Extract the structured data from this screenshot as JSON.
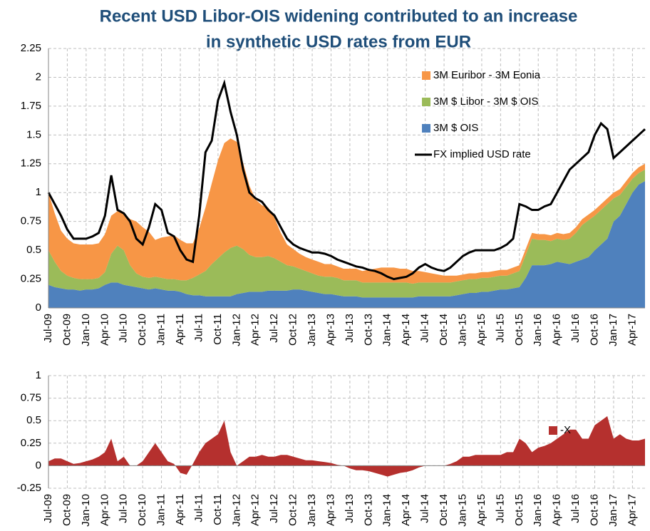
{
  "title": "Recent USD Libor-OIS widening contributed to an increase in synthetic USD rates from EUR",
  "chart_data": [
    {
      "type": "area",
      "stacked": true,
      "categories": [
        "Jul-09",
        null,
        null,
        "Oct-09",
        null,
        null,
        "Jan-10",
        null,
        null,
        "Apr-10",
        null,
        null,
        "Jul-10",
        null,
        null,
        "Oct-10",
        null,
        null,
        "Jan-11",
        null,
        null,
        "Apr-11",
        null,
        null,
        "Jul-11",
        null,
        null,
        "Oct-11",
        null,
        null,
        "Jan-12",
        null,
        null,
        "Apr-12",
        null,
        null,
        "Jul-12",
        null,
        null,
        "Oct-12",
        null,
        null,
        "Jan-13",
        null,
        null,
        "Apr-13",
        null,
        null,
        "Jul-13",
        null,
        null,
        "Oct-13",
        null,
        null,
        "Jan-14",
        null,
        null,
        "Apr-14",
        null,
        null,
        "Jul-14",
        null,
        null,
        "Oct-14",
        null,
        null,
        "Jan-15",
        null,
        null,
        "Apr-15",
        null,
        null,
        "Jul-15",
        null,
        null,
        "Oct-15",
        null,
        null,
        "Jan-16",
        null,
        null,
        "Apr-16",
        null,
        null,
        "Jul-16",
        null,
        null,
        "Oct-16",
        null,
        null,
        "Jan-17",
        null,
        null,
        "Apr-17",
        null,
        null
      ],
      "series": [
        {
          "name": "3M $ OIS",
          "color": "#4f81bd",
          "values": [
            0.2,
            0.18,
            0.17,
            0.16,
            0.16,
            0.15,
            0.16,
            0.16,
            0.17,
            0.2,
            0.22,
            0.22,
            0.2,
            0.19,
            0.18,
            0.17,
            0.16,
            0.17,
            0.16,
            0.15,
            0.15,
            0.14,
            0.12,
            0.11,
            0.11,
            0.1,
            0.1,
            0.1,
            0.1,
            0.1,
            0.12,
            0.13,
            0.14,
            0.14,
            0.14,
            0.15,
            0.15,
            0.15,
            0.15,
            0.16,
            0.16,
            0.15,
            0.14,
            0.13,
            0.12,
            0.12,
            0.11,
            0.1,
            0.1,
            0.1,
            0.09,
            0.09,
            0.09,
            0.09,
            0.09,
            0.09,
            0.09,
            0.09,
            0.09,
            0.1,
            0.1,
            0.1,
            0.1,
            0.1,
            0.1,
            0.11,
            0.12,
            0.13,
            0.13,
            0.14,
            0.14,
            0.15,
            0.16,
            0.16,
            0.17,
            0.18,
            0.26,
            0.37,
            0.37,
            0.37,
            0.38,
            0.4,
            0.39,
            0.38,
            0.4,
            0.42,
            0.44,
            0.5,
            0.55,
            0.6,
            0.75,
            0.8,
            0.9,
            1.0,
            1.07,
            1.1
          ]
        },
        {
          "name": "3M $ Libor - 3M $ OIS",
          "color": "#9bbb59",
          "values": [
            0.3,
            0.22,
            0.15,
            0.12,
            0.1,
            0.1,
            0.09,
            0.09,
            0.09,
            0.11,
            0.25,
            0.32,
            0.3,
            0.18,
            0.12,
            0.1,
            0.1,
            0.1,
            0.1,
            0.1,
            0.1,
            0.1,
            0.12,
            0.15,
            0.18,
            0.22,
            0.28,
            0.33,
            0.38,
            0.42,
            0.42,
            0.38,
            0.32,
            0.3,
            0.3,
            0.3,
            0.28,
            0.25,
            0.22,
            0.2,
            0.18,
            0.17,
            0.16,
            0.15,
            0.15,
            0.15,
            0.15,
            0.14,
            0.14,
            0.14,
            0.13,
            0.13,
            0.13,
            0.13,
            0.13,
            0.13,
            0.13,
            0.13,
            0.12,
            0.12,
            0.12,
            0.12,
            0.12,
            0.12,
            0.12,
            0.12,
            0.12,
            0.12,
            0.12,
            0.12,
            0.12,
            0.12,
            0.12,
            0.12,
            0.13,
            0.14,
            0.2,
            0.23,
            0.22,
            0.22,
            0.2,
            0.2,
            0.2,
            0.22,
            0.25,
            0.3,
            0.32,
            0.3,
            0.3,
            0.3,
            0.2,
            0.18,
            0.15,
            0.12,
            0.1,
            0.1
          ]
        },
        {
          "name": "3M Euribor - 3M Eonia",
          "color": "#f79646",
          "values": [
            0.5,
            0.42,
            0.35,
            0.32,
            0.3,
            0.3,
            0.3,
            0.3,
            0.3,
            0.33,
            0.33,
            0.3,
            0.32,
            0.4,
            0.45,
            0.43,
            0.4,
            0.32,
            0.35,
            0.37,
            0.38,
            0.35,
            0.32,
            0.3,
            0.4,
            0.55,
            0.7,
            0.85,
            0.95,
            0.95,
            0.9,
            0.75,
            0.6,
            0.5,
            0.45,
            0.42,
            0.35,
            0.25,
            0.18,
            0.15,
            0.13,
            0.12,
            0.12,
            0.12,
            0.11,
            0.11,
            0.1,
            0.1,
            0.1,
            0.1,
            0.1,
            0.11,
            0.12,
            0.13,
            0.13,
            0.13,
            0.12,
            0.12,
            0.11,
            0.1,
            0.09,
            0.08,
            0.07,
            0.06,
            0.06,
            0.05,
            0.05,
            0.05,
            0.05,
            0.05,
            0.05,
            0.05,
            0.05,
            0.05,
            0.05,
            0.05,
            0.05,
            0.05,
            0.05,
            0.05,
            0.05,
            0.05,
            0.05,
            0.05,
            0.05,
            0.05,
            0.05,
            0.05,
            0.05,
            0.05,
            0.05,
            0.05,
            0.05,
            0.05,
            0.05,
            0.05
          ]
        },
        {
          "name": "FX implied USD rate",
          "color": "#000000",
          "type": "line",
          "values": [
            1.0,
            0.9,
            0.8,
            0.68,
            0.6,
            0.6,
            0.6,
            0.62,
            0.65,
            0.8,
            1.15,
            0.85,
            0.82,
            0.75,
            0.6,
            0.55,
            0.7,
            0.9,
            0.85,
            0.65,
            0.62,
            0.5,
            0.42,
            0.4,
            0.8,
            1.35,
            1.45,
            1.8,
            1.95,
            1.7,
            1.5,
            1.2,
            1.0,
            0.95,
            0.92,
            0.85,
            0.8,
            0.7,
            0.6,
            0.55,
            0.52,
            0.5,
            0.48,
            0.48,
            0.47,
            0.45,
            0.42,
            0.4,
            0.38,
            0.36,
            0.35,
            0.33,
            0.32,
            0.3,
            0.27,
            0.25,
            0.26,
            0.27,
            0.3,
            0.35,
            0.38,
            0.35,
            0.33,
            0.32,
            0.35,
            0.4,
            0.45,
            0.48,
            0.5,
            0.5,
            0.5,
            0.5,
            0.52,
            0.55,
            0.6,
            0.9,
            0.88,
            0.85,
            0.85,
            0.88,
            0.9,
            1.0,
            1.1,
            1.2,
            1.25,
            1.3,
            1.35,
            1.5,
            1.6,
            1.55,
            1.3,
            1.35,
            1.4,
            1.45,
            1.5,
            1.55
          ]
        }
      ],
      "ylim": [
        0,
        2.25
      ],
      "yticks": [
        0,
        0.25,
        0.5,
        0.75,
        1,
        1.25,
        1.5,
        1.75,
        2,
        2.25
      ],
      "grid": true,
      "legend": "top-right"
    },
    {
      "type": "area",
      "categories": [
        "Jul-09",
        null,
        null,
        "Oct-09",
        null,
        null,
        "Jan-10",
        null,
        null,
        "Apr-10",
        null,
        null,
        "Jul-10",
        null,
        null,
        "Oct-10",
        null,
        null,
        "Jan-11",
        null,
        null,
        "Apr-11",
        null,
        null,
        "Jul-11",
        null,
        null,
        "Oct-11",
        null,
        null,
        "Jan-12",
        null,
        null,
        "Apr-12",
        null,
        null,
        "Jul-12",
        null,
        null,
        "Oct-12",
        null,
        null,
        "Jan-13",
        null,
        null,
        "Apr-13",
        null,
        null,
        "Jul-13",
        null,
        null,
        "Oct-13",
        null,
        null,
        "Jan-14",
        null,
        null,
        "Apr-14",
        null,
        null,
        "Jul-14",
        null,
        null,
        "Oct-14",
        null,
        null,
        "Jan-15",
        null,
        null,
        "Apr-15",
        null,
        null,
        "Jul-15",
        null,
        null,
        "Oct-15",
        null,
        null,
        "Jan-16",
        null,
        null,
        "Apr-16",
        null,
        null,
        "Jul-16",
        null,
        null,
        "Oct-16",
        null,
        null,
        "Jan-17",
        null,
        null,
        "Apr-17",
        null,
        null
      ],
      "series": [
        {
          "name": "-X",
          "color": "#b5302e",
          "values": [
            0.05,
            0.08,
            0.08,
            0.05,
            0.02,
            0.03,
            0.05,
            0.07,
            0.1,
            0.15,
            0.3,
            0.05,
            0.1,
            0.0,
            0.0,
            0.05,
            0.15,
            0.25,
            0.15,
            0.05,
            0.02,
            -0.08,
            -0.1,
            0.02,
            0.15,
            0.25,
            0.3,
            0.35,
            0.5,
            0.15,
            0.0,
            0.05,
            0.1,
            0.1,
            0.12,
            0.1,
            0.1,
            0.12,
            0.12,
            0.1,
            0.08,
            0.06,
            0.06,
            0.05,
            0.04,
            0.03,
            0.01,
            0.0,
            -0.03,
            -0.05,
            -0.05,
            -0.06,
            -0.08,
            -0.1,
            -0.12,
            -0.1,
            -0.08,
            -0.07,
            -0.05,
            -0.02,
            0.0,
            0.0,
            0.0,
            0.0,
            0.02,
            0.05,
            0.1,
            0.1,
            0.12,
            0.12,
            0.12,
            0.12,
            0.12,
            0.15,
            0.15,
            0.3,
            0.25,
            0.15,
            0.2,
            0.22,
            0.25,
            0.3,
            0.35,
            0.4,
            0.4,
            0.3,
            0.3,
            0.45,
            0.5,
            0.55,
            0.3,
            0.35,
            0.3,
            0.28,
            0.28,
            0.3
          ]
        }
      ],
      "ylim": [
        -0.25,
        1
      ],
      "yticks": [
        -0.25,
        0,
        0.25,
        0.5,
        0.75,
        1
      ],
      "grid": true,
      "legend": "top-right"
    }
  ]
}
